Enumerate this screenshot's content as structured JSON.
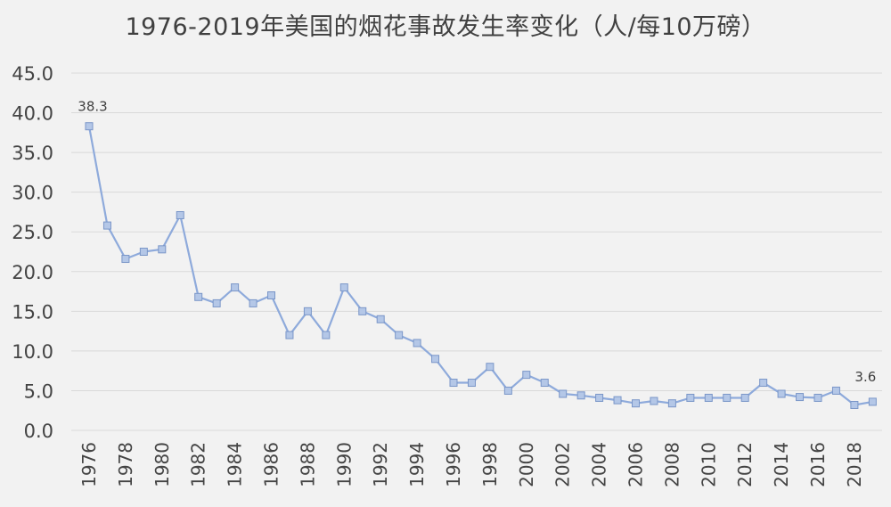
{
  "chart_data": {
    "type": "line",
    "title": "1976-2019年美国的烟花事故发生率变化（人/每10万磅）",
    "xlabel": "",
    "ylabel": "",
    "x": [
      1976,
      1977,
      1978,
      1979,
      1980,
      1981,
      1982,
      1983,
      1984,
      1985,
      1986,
      1987,
      1988,
      1989,
      1990,
      1991,
      1992,
      1993,
      1994,
      1995,
      1996,
      1997,
      1998,
      1999,
      2000,
      2001,
      2002,
      2003,
      2004,
      2005,
      2006,
      2007,
      2008,
      2009,
      2010,
      2011,
      2012,
      2013,
      2014,
      2015,
      2016,
      2017,
      2018,
      2019
    ],
    "series": [
      {
        "values": [
          38.3,
          25.8,
          21.6,
          22.5,
          22.8,
          27.1,
          16.8,
          16.0,
          18.0,
          16.0,
          17.0,
          12.0,
          15.0,
          12.0,
          18.0,
          15.0,
          14.0,
          12.0,
          11.0,
          9.0,
          6.0,
          6.0,
          8.0,
          5.0,
          7.0,
          6.0,
          4.6,
          4.4,
          4.1,
          3.8,
          3.4,
          3.7,
          3.4,
          4.1,
          4.1,
          4.1,
          4.1,
          6.0,
          4.6,
          4.2,
          4.1,
          5.0,
          3.2,
          3.6
        ],
        "color": "#8eaadb",
        "marker_fill": "#b4c7e7",
        "marker_stroke": "#7a96c8"
      }
    ],
    "ylim": [
      0,
      45
    ],
    "yticks": [
      "0.0",
      "5.0",
      "10.0",
      "15.0",
      "20.0",
      "25.0",
      "30.0",
      "35.0",
      "40.0",
      "45.0"
    ],
    "xticks": [
      "1976",
      "1978",
      "1980",
      "1982",
      "1984",
      "1986",
      "1988",
      "1990",
      "1992",
      "1994",
      "1996",
      "1998",
      "2000",
      "2002",
      "2004",
      "2006",
      "2008",
      "2010",
      "2012",
      "2014",
      "2016",
      "2018"
    ],
    "annotations": [
      {
        "x": 1976,
        "text": "38.3"
      },
      {
        "x": 2019,
        "text": "3.6"
      }
    ],
    "grid": true,
    "grid_color": "#d9d9d9",
    "legend": "none"
  }
}
